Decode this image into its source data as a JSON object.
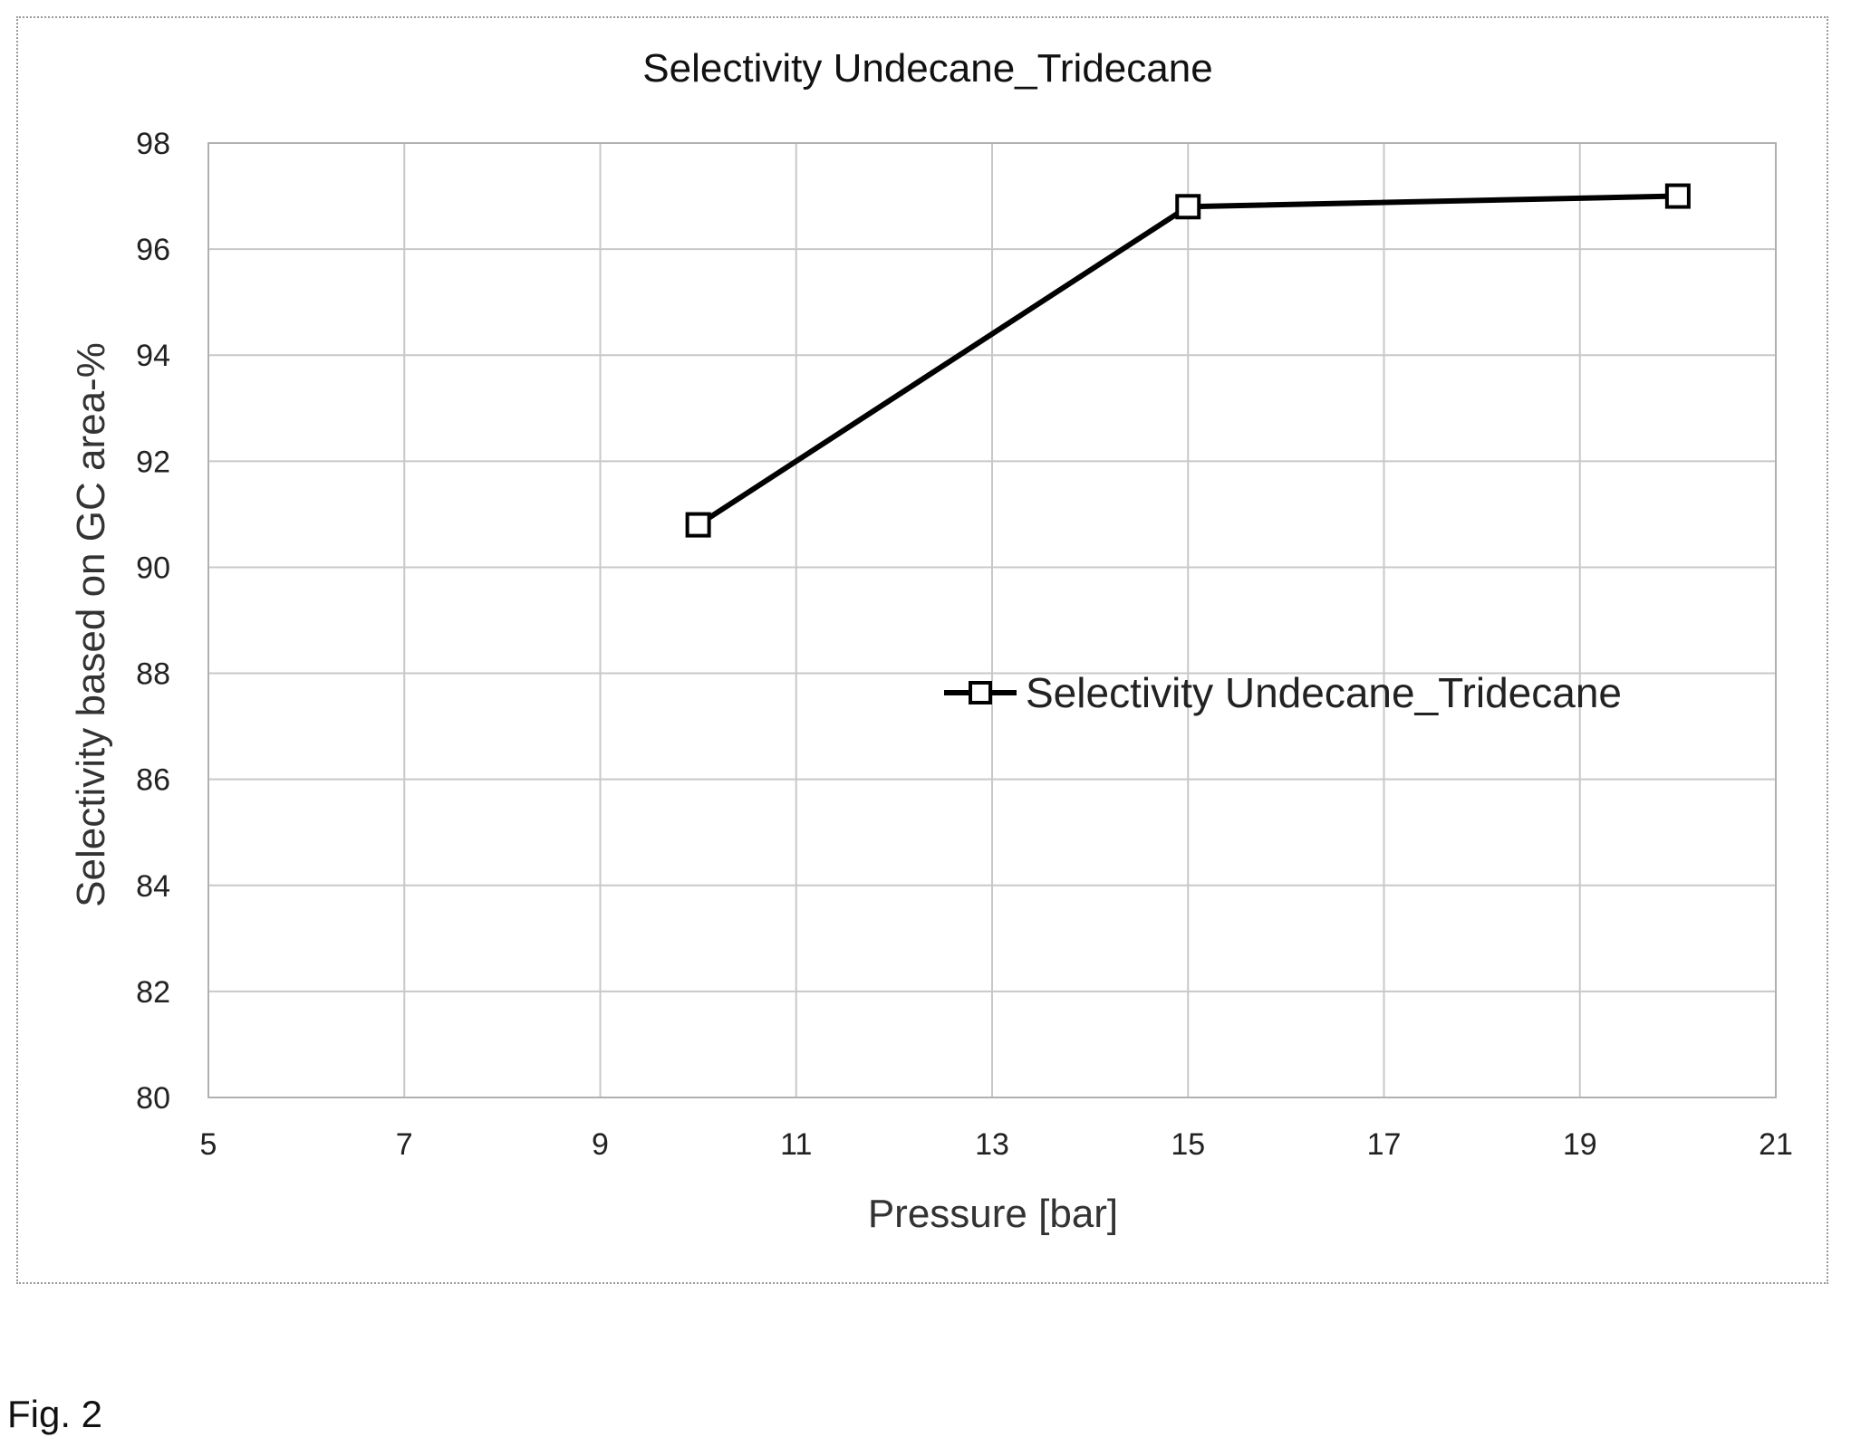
{
  "caption": "Fig. 2",
  "chart_data": {
    "type": "line",
    "title": "Selectivity Undecane_Tridecane",
    "xlabel": "Pressure [bar]",
    "ylabel": "Selectivity based on GC area-%",
    "xlim": [
      5,
      21
    ],
    "ylim": [
      80,
      98
    ],
    "x_ticks": [
      5,
      7,
      9,
      11,
      13,
      15,
      17,
      19,
      21
    ],
    "y_ticks": [
      80,
      82,
      84,
      86,
      88,
      90,
      92,
      94,
      96,
      98
    ],
    "grid": true,
    "legend": "center-right",
    "series": [
      {
        "name": "Selectivity Undecane_Tridecane",
        "marker": "square",
        "color": "#000000",
        "x": [
          10,
          15,
          20
        ],
        "y": [
          90.8,
          96.8,
          97.0
        ]
      }
    ]
  }
}
